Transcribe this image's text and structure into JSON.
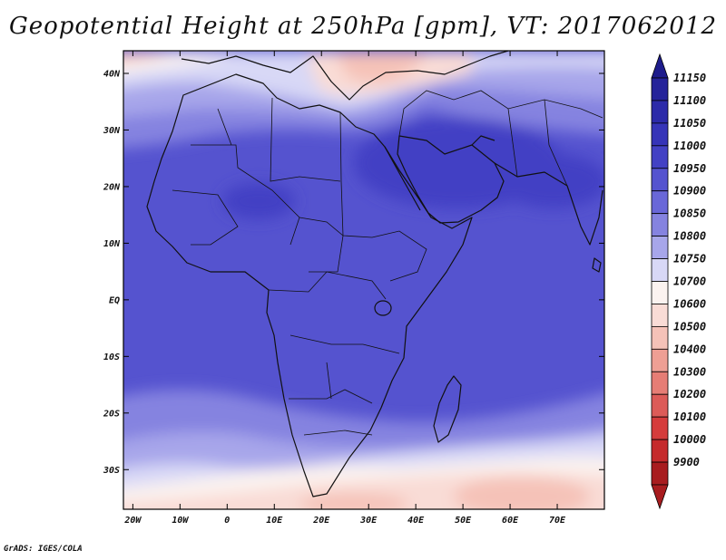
{
  "title": "Geopotential Height at 250hPa [gpm], VT: 2017062012",
  "credit": "GrADS: IGES/COLA",
  "map": {
    "lat_range": [
      -37,
      44
    ],
    "lon_range": [
      -22,
      80
    ],
    "lat_ticks": [
      {
        "value": 40,
        "label": "40N"
      },
      {
        "value": 30,
        "label": "30N"
      },
      {
        "value": 20,
        "label": "20N"
      },
      {
        "value": 10,
        "label": "10N"
      },
      {
        "value": 0,
        "label": "EQ"
      },
      {
        "value": -10,
        "label": "10S"
      },
      {
        "value": -20,
        "label": "20S"
      },
      {
        "value": -30,
        "label": "30S"
      }
    ],
    "lon_ticks": [
      {
        "value": -20,
        "label": "20W"
      },
      {
        "value": -10,
        "label": "10W"
      },
      {
        "value": 0,
        "label": "0"
      },
      {
        "value": 10,
        "label": "10E"
      },
      {
        "value": 20,
        "label": "20E"
      },
      {
        "value": 30,
        "label": "30E"
      },
      {
        "value": 40,
        "label": "40E"
      },
      {
        "value": 50,
        "label": "50E"
      },
      {
        "value": 60,
        "label": "60E"
      },
      {
        "value": 70,
        "label": "70E"
      }
    ]
  },
  "colorbar": {
    "levels": [
      {
        "label": "11150",
        "color": "#25239a"
      },
      {
        "label": "11100",
        "color": "#2c2aa9"
      },
      {
        "label": "11050",
        "color": "#3634b8"
      },
      {
        "label": "11000",
        "color": "#4341c4"
      },
      {
        "label": "10950",
        "color": "#5553cf"
      },
      {
        "label": "10900",
        "color": "#6967d8"
      },
      {
        "label": "10850",
        "color": "#8583e0"
      },
      {
        "label": "10800",
        "color": "#a7a6ea"
      },
      {
        "label": "10750",
        "color": "#d8d8f6"
      },
      {
        "label": "10700",
        "color": "#fbf3f0"
      },
      {
        "label": "10600",
        "color": "#f9dcd6"
      },
      {
        "label": "10500",
        "color": "#f5c2b8"
      },
      {
        "label": "10400",
        "color": "#ee9f94"
      },
      {
        "label": "10300",
        "color": "#e67d75"
      },
      {
        "label": "10200",
        "color": "#dc5b58"
      },
      {
        "label": "10100",
        "color": "#d53c3c"
      },
      {
        "label": "10000",
        "color": "#c52a2c"
      },
      {
        "label": "9900",
        "color": "#a81c1f"
      }
    ],
    "top_arrow_color": "#1e1c8c",
    "bottom_arrow_color": "#a81c1f"
  },
  "chart_data": {
    "type": "heatmap",
    "variable": "Geopotential Height at 250hPa",
    "units": "gpm",
    "valid_time": "2017062012",
    "field_regions": [
      {
        "name": "interior-domain",
        "value": 10950
      },
      {
        "name": "arabia-max",
        "value": 11000
      },
      {
        "name": "sahel-max",
        "value": 11000
      },
      {
        "name": "north-sahara",
        "value": 10900
      },
      {
        "name": "mediterranean-trough",
        "value": 10750
      },
      {
        "name": "aegean-min",
        "value": 10700
      },
      {
        "name": "southern-band",
        "value": 10850
      },
      {
        "name": "south-africa-ridge-edge",
        "value": 10750
      },
      {
        "name": "south-indian-low",
        "value": 10600
      }
    ]
  }
}
